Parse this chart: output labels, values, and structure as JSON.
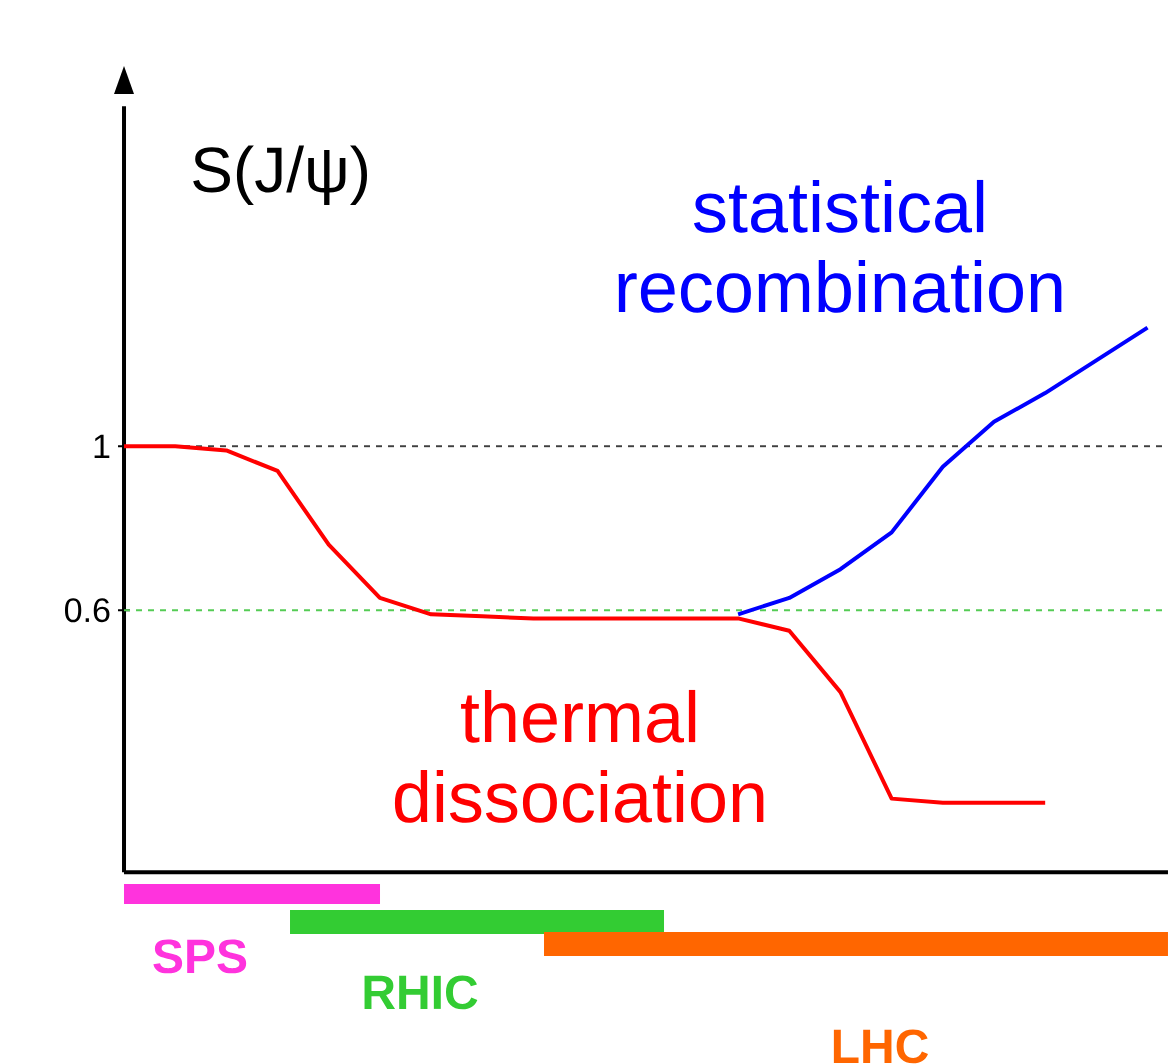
{
  "chart_data": {
    "type": "line",
    "ylabel": "S(J/ψ)",
    "categories": [
      null,
      null,
      null,
      null,
      null,
      null,
      null,
      null,
      null,
      null,
      null,
      null,
      null,
      null,
      null,
      null,
      null,
      null,
      null,
      null,
      null
    ],
    "series": [
      {
        "name": "statistical recombination",
        "color": "#0000ff",
        "values": [
          null,
          null,
          null,
          null,
          null,
          null,
          null,
          null,
          null,
          null,
          null,
          null,
          0.59,
          0.63,
          0.7,
          0.79,
          0.95,
          1.06,
          1.13,
          1.21,
          1.29
        ]
      },
      {
        "name": "thermal dissociation",
        "color": "#ff0000",
        "values": [
          1,
          1,
          0.99,
          0.94,
          0.76,
          0.63,
          0.59,
          0.585,
          0.58,
          0.58,
          0.58,
          0.58,
          0.58,
          0.55,
          0.4,
          0.14,
          0.13,
          0.13,
          0.13,
          null,
          null
        ]
      }
    ],
    "ylim": [
      -0.04,
      1.83
    ],
    "yticks": [
      {
        "value": 0.6,
        "label": "0.6"
      },
      {
        "value": 1,
        "label": "1"
      }
    ],
    "tick_labels": "y",
    "marker": "none",
    "line_style": "solid",
    "ref_lines": [
      {
        "axis": "y",
        "value": 1,
        "color": "#404040",
        "line_style": "dashed"
      },
      {
        "axis": "y",
        "value": 0.6,
        "color": "#55cc55",
        "line_style": "dashed"
      }
    ],
    "annotations": [
      "SPS",
      "RHIC",
      "LHC"
    ]
  }
}
